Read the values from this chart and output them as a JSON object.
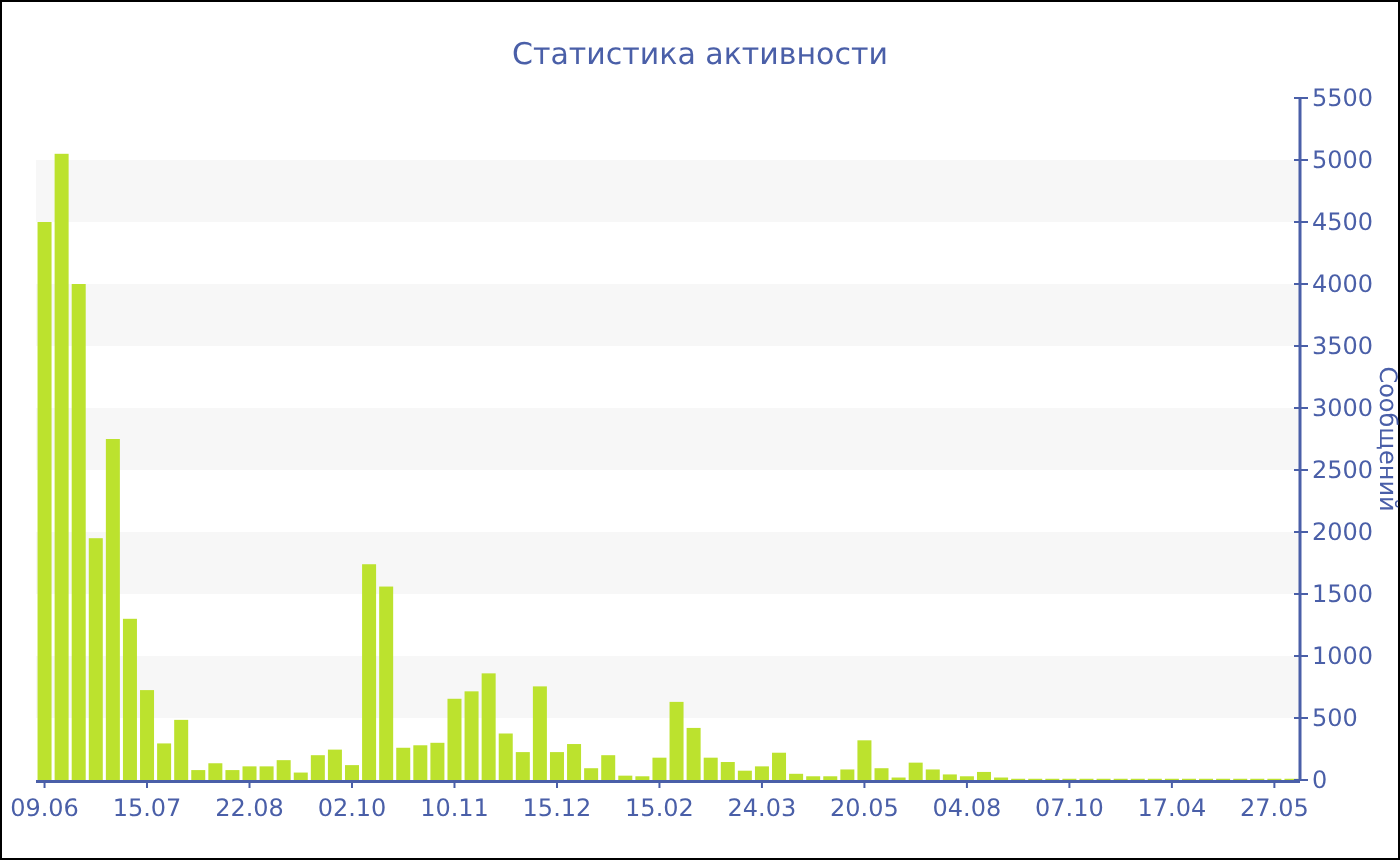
{
  "chart_data": {
    "type": "bar",
    "title": "Статистика активности",
    "ylabel": "Сообщений",
    "categories": [
      "09.06",
      null,
      null,
      null,
      null,
      null,
      "15.07",
      null,
      null,
      null,
      null,
      null,
      "22.08",
      null,
      null,
      null,
      null,
      null,
      "02.10",
      null,
      null,
      null,
      null,
      null,
      "10.11",
      null,
      null,
      null,
      null,
      null,
      "15.12",
      null,
      null,
      null,
      null,
      null,
      "15.02",
      null,
      null,
      null,
      null,
      null,
      "24.03",
      null,
      null,
      null,
      null,
      null,
      "20.05",
      null,
      null,
      null,
      null,
      null,
      "04.08",
      null,
      null,
      null,
      null,
      null,
      "07.10",
      null,
      null,
      null,
      null,
      null,
      "17.04",
      null,
      null,
      null,
      null,
      null,
      "27.05",
      null
    ],
    "values": [
      4500,
      5050,
      4000,
      1950,
      2750,
      1300,
      725,
      295,
      485,
      80,
      135,
      80,
      110,
      110,
      160,
      60,
      200,
      245,
      120,
      1740,
      1560,
      260,
      280,
      300,
      655,
      715,
      860,
      375,
      225,
      755,
      225,
      290,
      95,
      200,
      35,
      30,
      180,
      630,
      420,
      180,
      145,
      75,
      110,
      220,
      50,
      30,
      30,
      85,
      320,
      95,
      20,
      140,
      85,
      45,
      30,
      65,
      20,
      10,
      10,
      10,
      10,
      10,
      10,
      10,
      10,
      10,
      10,
      10,
      10,
      10,
      10,
      10,
      10,
      10
    ],
    "color": "#bce22e",
    "ylim": [
      0,
      5500
    ],
    "yticks": [
      0,
      500,
      1000,
      1500,
      2000,
      2500,
      3000,
      3500,
      4000,
      4500,
      5000,
      5500
    ],
    "bands": [
      {
        "axis": "y",
        "from": 500,
        "to": 1000,
        "color": "#f7f7f7"
      },
      {
        "axis": "y",
        "from": 1500,
        "to": 2000,
        "color": "#f7f7f7"
      },
      {
        "axis": "y",
        "from": 2500,
        "to": 3000,
        "color": "#f7f7f7"
      },
      {
        "axis": "y",
        "from": 3500,
        "to": 4000,
        "color": "#f7f7f7"
      },
      {
        "axis": "y",
        "from": 4500,
        "to": 5000,
        "color": "#f7f7f7"
      }
    ]
  }
}
